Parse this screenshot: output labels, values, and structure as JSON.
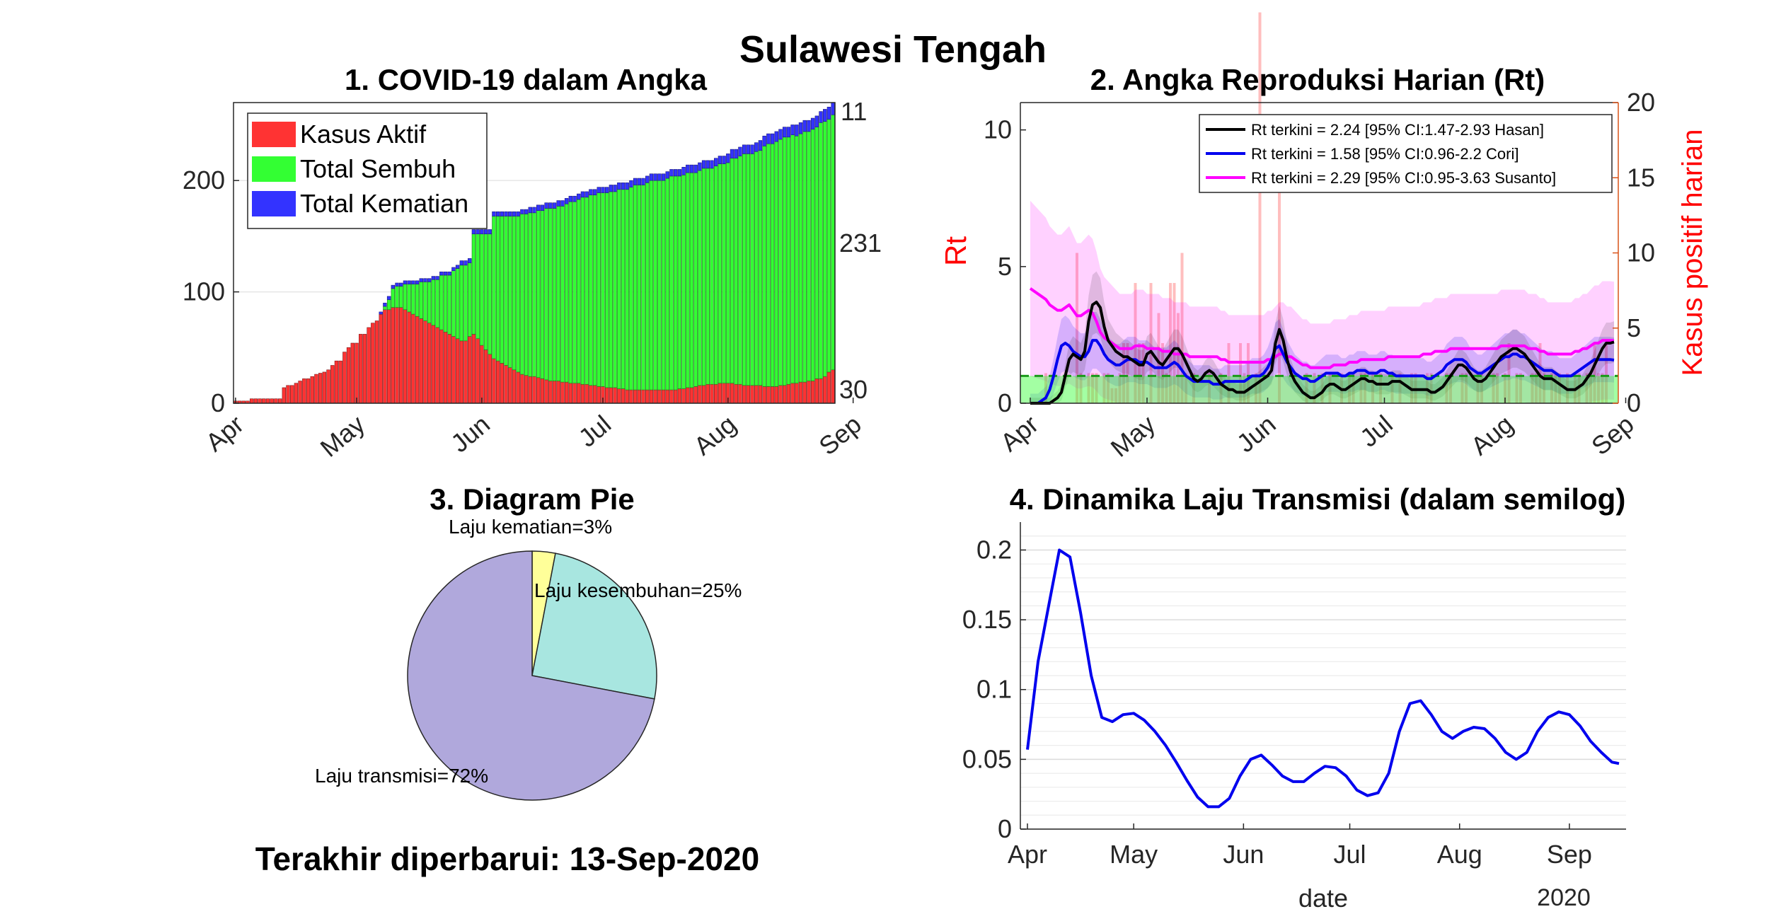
{
  "figure": {
    "title": "Sulawesi Tengah",
    "updated": "Terakhir diperbarui: 13-Sep-2020"
  },
  "colors": {
    "active": "#ff3333",
    "recovered": "#33ff33",
    "deaths": "#3333ff",
    "rt_hasan": "#000000",
    "rt_cori": "#0000ee",
    "rt_susanto": "#ff00ff",
    "rt_axis": "#ff0000",
    "right_axis": "#d95319",
    "left_axis_ticks": "#0072bd",
    "pie_transmission": "#b0a8dc",
    "pie_recovery": "#a8e6e0",
    "pie_death": "#ffff99"
  },
  "chart_data": [
    {
      "id": "p1",
      "type": "bar",
      "stacked": true,
      "title": "1. COVID-19 dalam Angka",
      "x_ticks": [
        "Apr",
        "May",
        "Jun",
        "Jul",
        "Aug",
        "Sep"
      ],
      "ylim": [
        0,
        270
      ],
      "y_ticks": [
        0,
        100,
        200
      ],
      "grid": true,
      "legend_position": "top-left",
      "series_names": [
        "Kasus Aktif",
        "Total Sembuh",
        "Total Kematian"
      ],
      "latest_labels": {
        "deaths": "11",
        "recovered": "231",
        "active": "30"
      },
      "totals": [
        2,
        2,
        2,
        2,
        4,
        4,
        4,
        4,
        4,
        4,
        4,
        4,
        14,
        16,
        16,
        18,
        20,
        22,
        22,
        24,
        26,
        27,
        28,
        30,
        34,
        38,
        38,
        46,
        50,
        54,
        54,
        62,
        62,
        68,
        72,
        74,
        82,
        90,
        96,
        106,
        108,
        108,
        110,
        110,
        110,
        110,
        112,
        112,
        112,
        114,
        114,
        118,
        118,
        118,
        122,
        124,
        128,
        128,
        130,
        156,
        156,
        156,
        156,
        156,
        172,
        172,
        172,
        172,
        172,
        172,
        172,
        174,
        174,
        176,
        176,
        178,
        178,
        180,
        180,
        180,
        182,
        182,
        184,
        186,
        186,
        188,
        190,
        190,
        192,
        192,
        194,
        194,
        194,
        196,
        196,
        198,
        198,
        198,
        200,
        202,
        202,
        202,
        204,
        206,
        206,
        206,
        206,
        208,
        210,
        210,
        210,
        212,
        214,
        214,
        214,
        216,
        218,
        218,
        218,
        220,
        222,
        222,
        224,
        228,
        228,
        230,
        232,
        232,
        232,
        234,
        236,
        240,
        242,
        242,
        244,
        246,
        248,
        248,
        250,
        250,
        252,
        254,
        254,
        256,
        258,
        262,
        264,
        266,
        270
      ],
      "active": [
        2,
        2,
        2,
        2,
        4,
        4,
        4,
        4,
        4,
        4,
        4,
        4,
        14,
        16,
        16,
        18,
        20,
        22,
        22,
        24,
        26,
        27,
        28,
        30,
        34,
        38,
        38,
        46,
        50,
        54,
        54,
        62,
        62,
        68,
        72,
        74,
        80,
        84,
        84,
        86,
        86,
        86,
        84,
        82,
        80,
        78,
        76,
        74,
        72,
        70,
        68,
        66,
        64,
        62,
        60,
        58,
        56,
        56,
        60,
        62,
        58,
        52,
        48,
        44,
        40,
        38,
        36,
        34,
        32,
        30,
        28,
        26,
        25,
        24,
        24,
        23,
        22,
        21,
        20,
        20,
        20,
        19,
        19,
        18,
        18,
        18,
        17,
        17,
        16,
        16,
        15,
        15,
        14,
        14,
        14,
        13,
        13,
        12,
        12,
        12,
        12,
        12,
        12,
        12,
        12,
        12,
        12,
        12,
        12,
        12,
        13,
        13,
        14,
        14,
        15,
        16,
        16,
        17,
        17,
        17,
        18,
        18,
        18,
        18,
        17,
        17,
        16,
        16,
        16,
        16,
        16,
        15,
        15,
        15,
        15,
        16,
        16,
        17,
        18,
        18,
        19,
        19,
        20,
        20,
        22,
        22,
        24,
        28,
        30
      ],
      "deaths": [
        0,
        0,
        0,
        0,
        0,
        0,
        0,
        0,
        0,
        0,
        0,
        0,
        1,
        1,
        1,
        1,
        1,
        1,
        1,
        1,
        2,
        2,
        2,
        2,
        2,
        2,
        2,
        3,
        3,
        3,
        3,
        3,
        3,
        3,
        3,
        3,
        3,
        3,
        3,
        3,
        3,
        3,
        3,
        3,
        3,
        3,
        3,
        3,
        3,
        3,
        3,
        3,
        3,
        3,
        3,
        3,
        4,
        4,
        4,
        4,
        4,
        4,
        4,
        4,
        4,
        4,
        4,
        4,
        4,
        4,
        4,
        4,
        4,
        5,
        5,
        5,
        5,
        5,
        5,
        5,
        5,
        5,
        5,
        5,
        5,
        5,
        5,
        5,
        5,
        5,
        5,
        5,
        5,
        6,
        6,
        6,
        6,
        6,
        6,
        6,
        6,
        6,
        6,
        6,
        6,
        6,
        6,
        6,
        6,
        6,
        6,
        7,
        7,
        7,
        7,
        7,
        7,
        7,
        7,
        7,
        7,
        7,
        8,
        8,
        8,
        8,
        8,
        8,
        8,
        8,
        9,
        9,
        9,
        9,
        9,
        9,
        9,
        9,
        9,
        10,
        10,
        10,
        10,
        10,
        10,
        10,
        11,
        11,
        11
      ]
    },
    {
      "id": "p2",
      "type": "line",
      "title": "2. Angka Reproduksi Harian (Rt)",
      "ylabel": "Rt",
      "ylabel_right": "Kasus positif harian",
      "x_ticks": [
        "Apr",
        "May",
        "Jun",
        "Jul",
        "Aug",
        "Sep"
      ],
      "ylim": [
        0,
        11
      ],
      "y_ticks": [
        0,
        5,
        10
      ],
      "ylim_right": [
        0,
        20
      ],
      "y_ticks_right": [
        0,
        5,
        10,
        15,
        20
      ],
      "legend_position": "top-right",
      "threshold": 1,
      "series": [
        {
          "name": "Rt terkini = 2.24 [95% CI:1.47-2.93 Hasan]",
          "values": [
            0.0,
            0.0,
            0.0,
            0.0,
            0.0,
            0.0,
            0.1,
            0.2,
            0.4,
            1.0,
            1.6,
            1.8,
            1.7,
            1.6,
            1.9,
            3.0,
            3.6,
            3.7,
            3.5,
            2.8,
            2.3,
            2.1,
            1.9,
            1.8,
            1.7,
            1.7,
            1.6,
            1.5,
            1.4,
            1.4,
            1.8,
            1.9,
            1.7,
            1.5,
            1.4,
            1.6,
            1.8,
            2.0,
            2.0,
            1.8,
            1.5,
            1.2,
            0.9,
            0.8,
            0.9,
            1.1,
            1.2,
            1.1,
            0.9,
            0.7,
            0.6,
            0.5,
            0.5,
            0.4,
            0.4,
            0.4,
            0.5,
            0.6,
            0.7,
            0.8,
            0.9,
            1.0,
            1.2,
            2.2,
            2.7,
            2.3,
            1.6,
            1.1,
            0.8,
            0.6,
            0.4,
            0.3,
            0.2,
            0.2,
            0.3,
            0.4,
            0.6,
            0.7,
            0.7,
            0.6,
            0.5,
            0.5,
            0.6,
            0.7,
            0.8,
            0.9,
            0.9,
            0.8,
            0.8,
            0.7,
            0.7,
            0.7,
            0.7,
            0.8,
            0.8,
            0.8,
            0.7,
            0.6,
            0.5,
            0.5,
            0.5,
            0.5,
            0.5,
            0.4,
            0.4,
            0.5,
            0.6,
            0.8,
            1.0,
            1.2,
            1.4,
            1.4,
            1.3,
            1.1,
            0.9,
            0.8,
            0.8,
            0.9,
            1.1,
            1.3,
            1.5,
            1.7,
            1.8,
            1.9,
            2.0,
            2.0,
            1.9,
            1.8,
            1.6,
            1.4,
            1.2,
            1.0,
            0.9,
            0.9,
            0.9,
            0.8,
            0.7,
            0.6,
            0.5,
            0.5,
            0.5,
            0.6,
            0.7,
            0.9,
            1.1,
            1.4,
            1.7,
            2.0,
            2.2,
            2.2,
            2.24
          ]
        },
        {
          "name": "Rt terkini = 1.58 [95% CI:0.96-2.2 Cori]",
          "values": [
            0.0,
            0.0,
            0.0,
            0.1,
            0.2,
            0.5,
            1.0,
            1.6,
            2.1,
            2.2,
            2.1,
            1.9,
            1.8,
            1.7,
            1.7,
            1.9,
            2.3,
            2.3,
            2.1,
            1.8,
            1.6,
            1.5,
            1.4,
            1.4,
            1.5,
            1.6,
            1.6,
            1.6,
            1.5,
            1.5,
            1.5,
            1.4,
            1.3,
            1.3,
            1.3,
            1.3,
            1.4,
            1.5,
            1.4,
            1.2,
            1.0,
            0.9,
            0.8,
            0.8,
            0.8,
            0.8,
            0.8,
            0.7,
            0.7,
            0.7,
            0.8,
            0.8,
            0.8,
            0.8,
            0.8,
            0.8,
            0.9,
            1.0,
            1.0,
            1.0,
            1.1,
            1.3,
            1.6,
            2.0,
            2.1,
            1.8,
            1.5,
            1.3,
            1.1,
            1.0,
            0.9,
            0.9,
            0.8,
            0.8,
            0.9,
            1.0,
            1.1,
            1.1,
            1.1,
            1.1,
            1.0,
            1.0,
            1.1,
            1.1,
            1.2,
            1.2,
            1.2,
            1.1,
            1.1,
            1.1,
            1.2,
            1.2,
            1.1,
            1.1,
            1.0,
            1.0,
            1.0,
            1.0,
            1.0,
            1.0,
            1.0,
            1.0,
            0.9,
            0.9,
            1.0,
            1.1,
            1.2,
            1.4,
            1.5,
            1.6,
            1.6,
            1.6,
            1.5,
            1.3,
            1.2,
            1.1,
            1.1,
            1.2,
            1.3,
            1.4,
            1.5,
            1.6,
            1.7,
            1.7,
            1.8,
            1.8,
            1.7,
            1.7,
            1.6,
            1.5,
            1.4,
            1.3,
            1.2,
            1.2,
            1.2,
            1.1,
            1.0,
            1.0,
            1.0,
            1.0,
            1.1,
            1.2,
            1.3,
            1.4,
            1.5,
            1.6,
            1.6,
            1.6,
            1.6,
            1.6,
            1.58
          ]
        },
        {
          "name": "Rt terkini = 2.29 [95% CI:0.95-3.63 Susanto]",
          "values": [
            4.2,
            4.1,
            4.0,
            3.9,
            3.8,
            3.6,
            3.5,
            3.4,
            3.4,
            3.5,
            3.6,
            3.4,
            3.2,
            3.2,
            3.3,
            3.4,
            3.3,
            3.0,
            2.6,
            2.4,
            2.3,
            2.2,
            2.1,
            2.0,
            2.0,
            2.0,
            2.0,
            2.1,
            2.1,
            2.1,
            2.0,
            2.0,
            2.0,
            2.0,
            1.9,
            1.9,
            1.9,
            1.8,
            1.8,
            1.8,
            1.8,
            1.7,
            1.7,
            1.7,
            1.7,
            1.7,
            1.7,
            1.7,
            1.7,
            1.6,
            1.6,
            1.5,
            1.5,
            1.5,
            1.5,
            1.5,
            1.5,
            1.5,
            1.5,
            1.5,
            1.5,
            1.6,
            1.6,
            1.7,
            1.8,
            1.8,
            1.7,
            1.7,
            1.6,
            1.5,
            1.4,
            1.4,
            1.3,
            1.3,
            1.3,
            1.3,
            1.3,
            1.3,
            1.4,
            1.4,
            1.4,
            1.4,
            1.5,
            1.5,
            1.5,
            1.6,
            1.6,
            1.6,
            1.6,
            1.6,
            1.6,
            1.6,
            1.7,
            1.7,
            1.7,
            1.7,
            1.7,
            1.7,
            1.7,
            1.7,
            1.7,
            1.8,
            1.8,
            1.8,
            1.9,
            1.9,
            1.9,
            1.9,
            2.0,
            2.0,
            2.0,
            2.0,
            2.0,
            2.0,
            2.0,
            2.0,
            2.0,
            2.0,
            2.0,
            2.0,
            2.0,
            2.1,
            2.1,
            2.1,
            2.1,
            2.1,
            2.1,
            2.1,
            2.0,
            2.0,
            2.0,
            1.9,
            1.9,
            1.8,
            1.8,
            1.8,
            1.8,
            1.8,
            1.8,
            1.8,
            1.9,
            1.9,
            2.0,
            2.0,
            2.1,
            2.2,
            2.2,
            2.3,
            2.3,
            2.3,
            2.29
          ]
        }
      ],
      "daily_cases": [
        0,
        0,
        0,
        0,
        2,
        0,
        0,
        0,
        0,
        0,
        0,
        0,
        10,
        2,
        0,
        2,
        2,
        2,
        0,
        2,
        2,
        1,
        1,
        2,
        4,
        4,
        0,
        8,
        4,
        4,
        0,
        8,
        0,
        6,
        4,
        2,
        8,
        8,
        6,
        10,
        2,
        0,
        2,
        0,
        0,
        0,
        2,
        0,
        0,
        2,
        0,
        4,
        0,
        0,
        4,
        2,
        4,
        0,
        2,
        26,
        0,
        0,
        0,
        0,
        16,
        0,
        0,
        0,
        0,
        0,
        0,
        2,
        0,
        2,
        0,
        2,
        0,
        2,
        0,
        0,
        2,
        0,
        2,
        2,
        0,
        2,
        2,
        0,
        2,
        0,
        2,
        0,
        0,
        2,
        0,
        2,
        0,
        0,
        2,
        2,
        0,
        0,
        2,
        2,
        0,
        0,
        0,
        2,
        2,
        0,
        0,
        2,
        2,
        0,
        0,
        2,
        2,
        0,
        0,
        2,
        2,
        0,
        2,
        4,
        0,
        2,
        2,
        0,
        0,
        2,
        2,
        4,
        2,
        0,
        2,
        2,
        2,
        0,
        2,
        0,
        2,
        2,
        0,
        2,
        2,
        4,
        2,
        2,
        4
      ]
    },
    {
      "id": "p3",
      "type": "pie",
      "title": "3. Diagram Pie",
      "slices": [
        {
          "label": "Laju kematian=3%",
          "value": 3
        },
        {
          "label": "Laju kesembuhan=25%",
          "value": 25
        },
        {
          "label": "Laju transmisi=72%",
          "value": 72
        }
      ]
    },
    {
      "id": "p4",
      "type": "line",
      "title": "4. Dinamika Laju Transmisi (dalam semilog)",
      "xlabel": "date",
      "x_year_label": "2020",
      "x_ticks": [
        "Apr",
        "May",
        "Jun",
        "Jul",
        "Aug",
        "Sep"
      ],
      "ylim": [
        0,
        0.22
      ],
      "y_ticks": [
        "0",
        "0.05",
        "0.1",
        "0.15",
        "0.2"
      ],
      "grid": true,
      "x_day": [
        0,
        3,
        6,
        9,
        12,
        15,
        18,
        21,
        24,
        27,
        30,
        33,
        36,
        39,
        42,
        45,
        48,
        51,
        54,
        57,
        60,
        63,
        66,
        69,
        72,
        75,
        78,
        81,
        84,
        87,
        90,
        93,
        96,
        99,
        102,
        105,
        108,
        111,
        114,
        117,
        120,
        123,
        126,
        129,
        132,
        135,
        138,
        141,
        144,
        147,
        150,
        153,
        156,
        159,
        162,
        165,
        167
      ],
      "values": [
        0.057,
        0.12,
        0.16,
        0.2,
        0.195,
        0.155,
        0.11,
        0.08,
        0.077,
        0.082,
        0.083,
        0.078,
        0.07,
        0.06,
        0.048,
        0.035,
        0.023,
        0.016,
        0.016,
        0.022,
        0.038,
        0.05,
        0.053,
        0.046,
        0.038,
        0.034,
        0.034,
        0.04,
        0.045,
        0.044,
        0.038,
        0.028,
        0.024,
        0.026,
        0.04,
        0.07,
        0.09,
        0.092,
        0.082,
        0.07,
        0.065,
        0.07,
        0.073,
        0.072,
        0.065,
        0.055,
        0.05,
        0.055,
        0.07,
        0.08,
        0.084,
        0.082,
        0.074,
        0.063,
        0.055,
        0.048,
        0.047
      ]
    }
  ]
}
